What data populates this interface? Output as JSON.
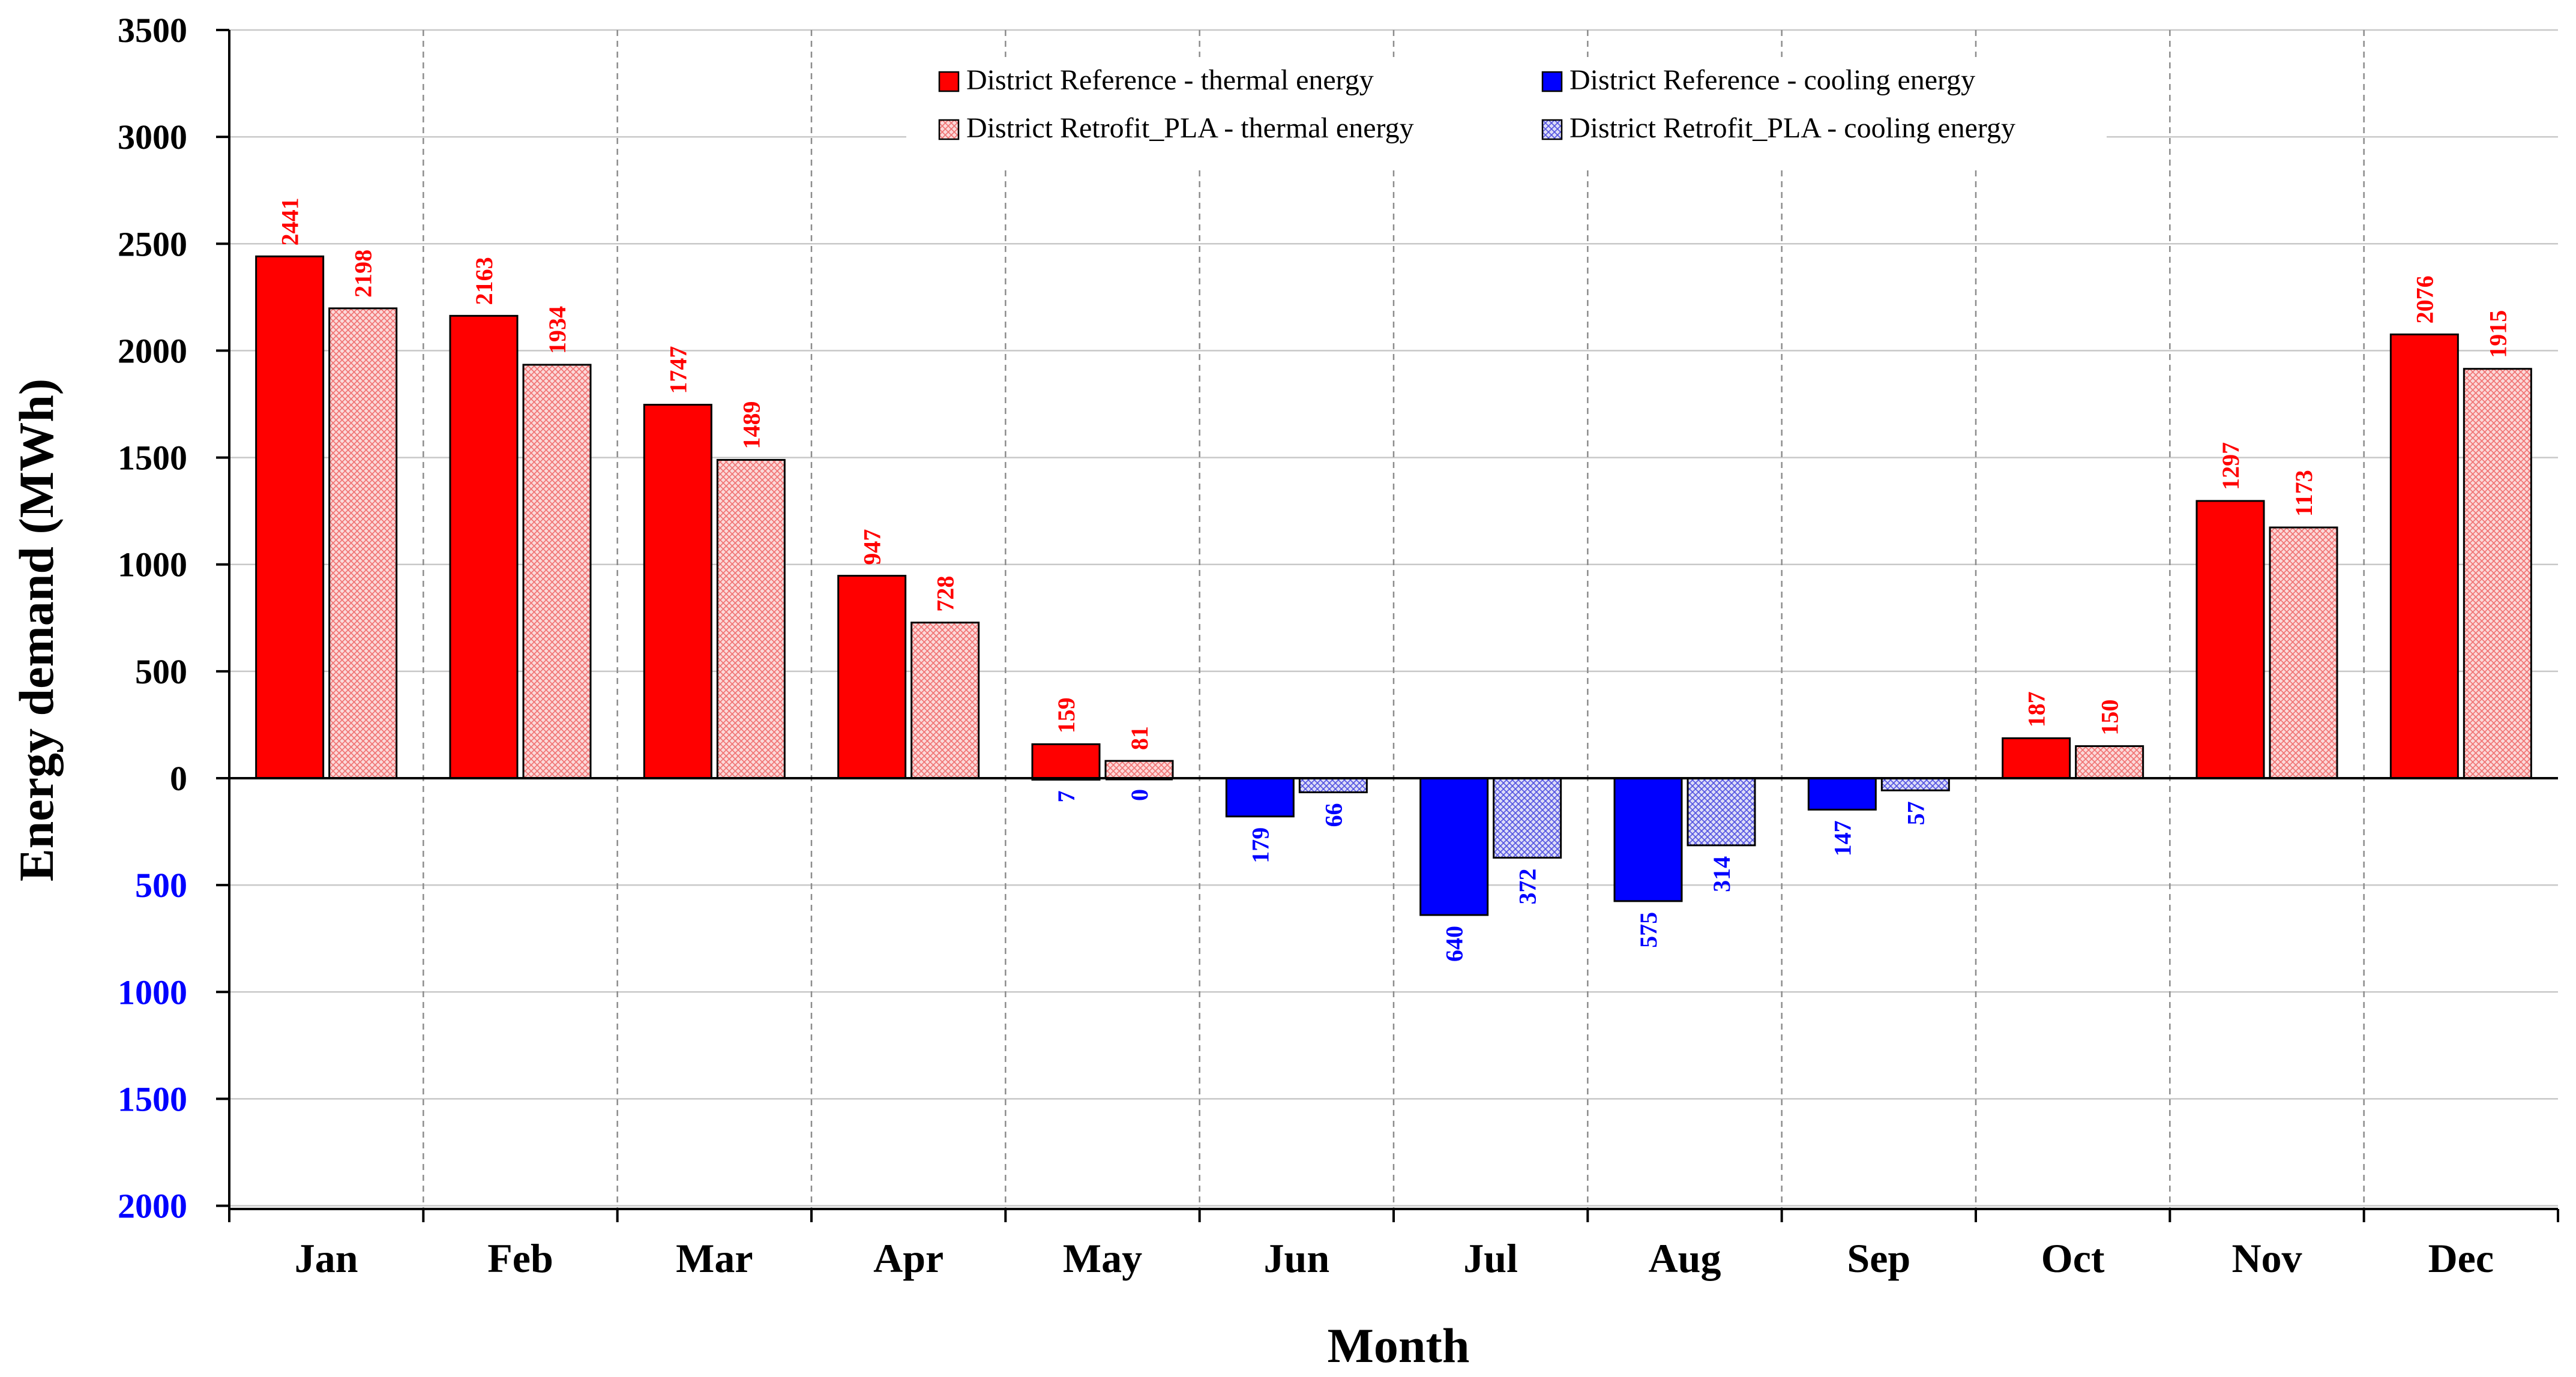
{
  "chart_data": {
    "type": "bar",
    "xlabel": "Month",
    "ylabel": "Energy demand (MWh)",
    "categories": [
      "Jan",
      "Feb",
      "Mar",
      "Apr",
      "May",
      "Jun",
      "Jul",
      "Aug",
      "Sep",
      "Oct",
      "Nov",
      "Dec"
    ],
    "series": [
      {
        "name": "District Reference - thermal energy",
        "kind": "thermal",
        "color": "#ff0000",
        "pattern": "solid",
        "values": [
          2441,
          2163,
          1747,
          947,
          159,
          0,
          0,
          0,
          0,
          187,
          1297,
          2076
        ],
        "labels": [
          "2441",
          "2163",
          "1747",
          "947",
          "159",
          "",
          "",
          "",
          "",
          "187",
          "1297",
          "2076"
        ]
      },
      {
        "name": "District Retrofit_PLA - thermal energy",
        "kind": "thermal",
        "color": "#ff0000",
        "pattern": "hatched",
        "values": [
          2198,
          1934,
          1489,
          728,
          81,
          0,
          0,
          0,
          0,
          150,
          1173,
          1915
        ],
        "labels": [
          "2198",
          "1934",
          "1489",
          "728",
          "81",
          "",
          "",
          "",
          "",
          "150",
          "1173",
          "1915"
        ]
      },
      {
        "name": "District Reference - cooling energy",
        "kind": "cooling",
        "color": "#0000ff",
        "pattern": "solid",
        "values": [
          0,
          0,
          0,
          0,
          7,
          179,
          640,
          575,
          147,
          0,
          0,
          0
        ],
        "labels": [
          "",
          "",
          "",
          "",
          "7",
          "179",
          "640",
          "575",
          "147",
          "",
          "",
          ""
        ]
      },
      {
        "name": "District Retrofit_PLA - cooling energy",
        "kind": "cooling",
        "color": "#0000ff",
        "pattern": "hatched",
        "values": [
          0,
          0,
          0,
          0,
          0,
          66,
          372,
          314,
          57,
          0,
          0,
          0
        ],
        "labels": [
          "",
          "",
          "",
          "",
          "0",
          "66",
          "372",
          "314",
          "57",
          "",
          "",
          ""
        ]
      }
    ],
    "y_positive_ticks": [
      "0",
      "500",
      "1000",
      "1500",
      "2000",
      "2500",
      "3000",
      "3500"
    ],
    "y_negative_ticks": [
      "500",
      "1000",
      "1500",
      "2000"
    ],
    "ylim": [
      -2000,
      3500
    ],
    "grid": true,
    "legend_position": "top-center"
  },
  "colors": {
    "thermal": "#ff0000",
    "cooling": "#0000ff",
    "thermal_hatch_bg": "#fbd9d9",
    "cooling_hatch_bg": "#dcdcf7",
    "grid": "#c8c8c8",
    "month_divider": "#8c8c8c"
  }
}
